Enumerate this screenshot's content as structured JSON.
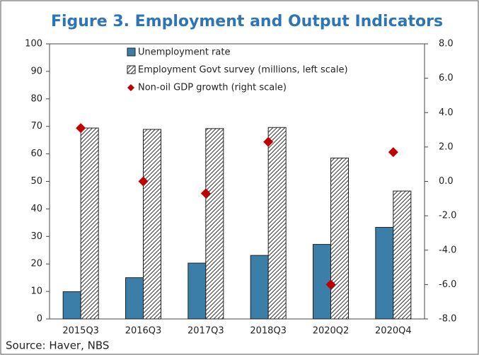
{
  "chart_data": {
    "type": "bar",
    "title": "Figure 3. Employment and Output Indicators",
    "source": "Source: Haver, NBS",
    "categories": [
      "2015Q3",
      "2016Q3",
      "2017Q3",
      "2018Q3",
      "2020Q2",
      "2020Q4"
    ],
    "series": [
      {
        "name": "Unemployment rate",
        "type": "bar",
        "color": "#3b7ea8",
        "values": [
          9.9,
          15,
          20.3,
          23.1,
          27.1,
          33.3
        ]
      },
      {
        "name": "Employment Govt survey (millions, left scale)",
        "type": "bar",
        "color": "#000000",
        "hatch": true,
        "values": [
          69.4,
          68.9,
          69.2,
          69.6,
          58.5,
          46.5
        ]
      },
      {
        "name": "Non-oil GDP growth (right scale)",
        "type": "scatter",
        "axis": "y2",
        "color": "#c00000",
        "values": [
          3.1,
          0.0,
          -0.7,
          2.3,
          -6.0,
          1.7
        ]
      }
    ],
    "ylim": [
      0,
      100
    ],
    "yticks": [
      0,
      10,
      20,
      30,
      40,
      50,
      60,
      70,
      80,
      90,
      100
    ],
    "y2lim": [
      -8,
      8
    ],
    "y2ticks": [
      {
        "value": -8,
        "label": "-8.0"
      },
      {
        "value": -6,
        "label": "-6.0"
      },
      {
        "value": -4,
        "label": "-4.0"
      },
      {
        "value": -2,
        "label": "-2.0"
      },
      {
        "value": 0,
        "label": "0.0"
      },
      {
        "value": 2,
        "label": "2.0"
      },
      {
        "value": 4,
        "label": "4.0"
      },
      {
        "value": 6,
        "label": "6.0"
      },
      {
        "value": 8,
        "label": "8.0"
      }
    ]
  }
}
